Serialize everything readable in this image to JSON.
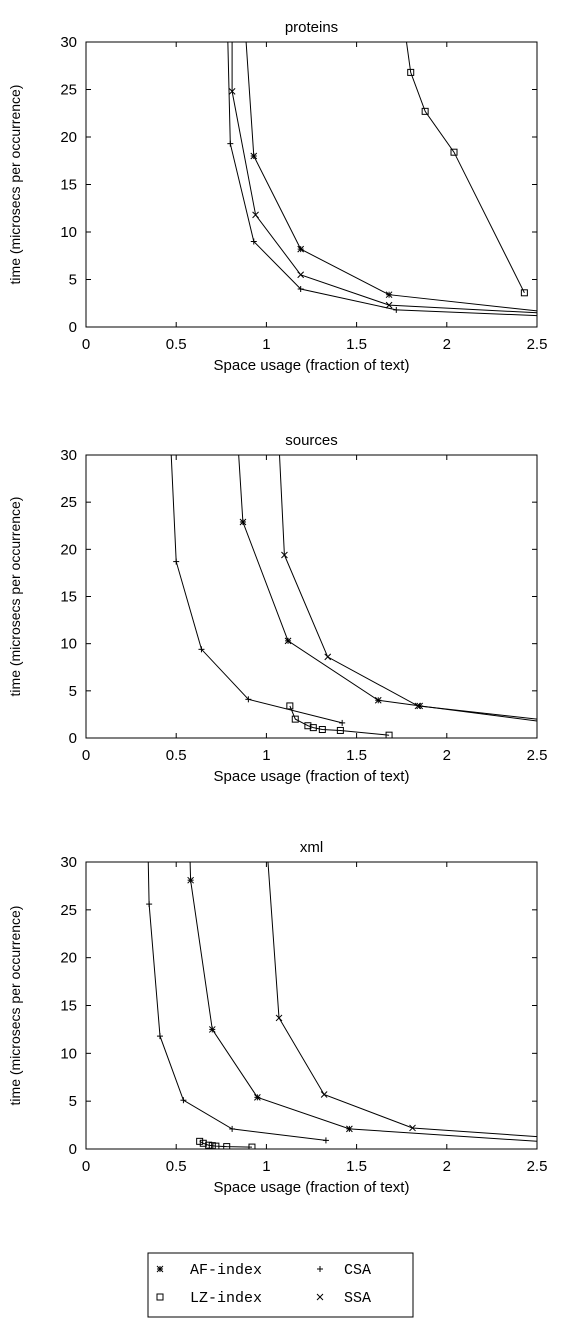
{
  "chart_data": [
    {
      "type": "line",
      "title": "proteins",
      "xlabel": "Space usage (fraction of text)",
      "ylabel": "time (microsecs per occurrence)",
      "xlim": [
        0,
        2.5
      ],
      "ylim": [
        0,
        30
      ],
      "xticks": [
        "0",
        "0.5",
        "1",
        "1.5",
        "2",
        "2.5"
      ],
      "yticks": [
        "0",
        "5",
        "10",
        "15",
        "20",
        "25",
        "30"
      ],
      "series": [
        {
          "name": "AF-index",
          "marker": "star",
          "points": [
            [
              0.87,
              35
            ],
            [
              0.93,
              18.0
            ],
            [
              1.19,
              8.2
            ],
            [
              1.68,
              3.4
            ],
            [
              2.5,
              1.7
            ]
          ]
        },
        {
          "name": "CSA",
          "marker": "plus",
          "points": [
            [
              0.78,
              35
            ],
            [
              0.8,
              19.3
            ],
            [
              0.93,
              9.0
            ],
            [
              1.19,
              4.0
            ],
            [
              1.72,
              1.8
            ],
            [
              2.5,
              1.2
            ]
          ]
        },
        {
          "name": "LZ-index",
          "marker": "square",
          "points": [
            [
              1.74,
              35
            ],
            [
              1.8,
              26.8
            ],
            [
              1.88,
              22.7
            ],
            [
              2.04,
              18.4
            ],
            [
              2.43,
              3.6
            ]
          ]
        },
        {
          "name": "SSA",
          "marker": "cross",
          "points": [
            [
              0.81,
              35
            ],
            [
              0.81,
              24.8
            ],
            [
              0.94,
              11.8
            ],
            [
              1.19,
              5.5
            ],
            [
              1.68,
              2.3
            ],
            [
              2.5,
              1.5
            ]
          ]
        }
      ]
    },
    {
      "type": "line",
      "title": "sources",
      "xlabel": "Space usage (fraction of text)",
      "ylabel": "time (microsecs per occurrence)",
      "xlim": [
        0,
        2.5
      ],
      "ylim": [
        0,
        30
      ],
      "xticks": [
        "0",
        "0.5",
        "1",
        "1.5",
        "2",
        "2.5"
      ],
      "yticks": [
        "0",
        "5",
        "10",
        "15",
        "20",
        "25",
        "30"
      ],
      "series": [
        {
          "name": "AF-index",
          "marker": "star",
          "points": [
            [
              0.83,
              35
            ],
            [
              0.87,
              22.9
            ],
            [
              1.12,
              10.3
            ],
            [
              1.62,
              4.0
            ],
            [
              1.85,
              3.4
            ],
            [
              2.5,
              1.8
            ]
          ]
        },
        {
          "name": "CSA",
          "marker": "plus",
          "points": [
            [
              0.46,
              35
            ],
            [
              0.5,
              18.7
            ],
            [
              0.64,
              9.4
            ],
            [
              0.9,
              4.1
            ],
            [
              1.42,
              1.6
            ]
          ]
        },
        {
          "name": "LZ-index",
          "marker": "square",
          "points": [
            [
              1.13,
              3.4
            ],
            [
              1.16,
              2.0
            ],
            [
              1.23,
              1.3
            ],
            [
              1.26,
              1.1
            ],
            [
              1.31,
              0.9
            ],
            [
              1.41,
              0.8
            ],
            [
              1.68,
              0.3
            ]
          ]
        },
        {
          "name": "SSA",
          "marker": "cross",
          "points": [
            [
              1.06,
              35
            ],
            [
              1.1,
              19.4
            ],
            [
              1.34,
              8.6
            ],
            [
              1.84,
              3.4
            ],
            [
              2.5,
              2.0
            ]
          ]
        }
      ]
    },
    {
      "type": "line",
      "title": "xml",
      "xlabel": "Space usage (fraction of text)",
      "ylabel": "time (microsecs per occurrence)",
      "xlim": [
        0,
        2.5
      ],
      "ylim": [
        0,
        30
      ],
      "xticks": [
        "0",
        "0.5",
        "1",
        "1.5",
        "2",
        "2.5"
      ],
      "yticks": [
        "0",
        "5",
        "10",
        "15",
        "20",
        "25",
        "30"
      ],
      "series": [
        {
          "name": "AF-index",
          "marker": "star",
          "points": [
            [
              0.57,
              35
            ],
            [
              0.58,
              28.1
            ],
            [
              0.7,
              12.5
            ],
            [
              0.95,
              5.4
            ],
            [
              1.46,
              2.1
            ],
            [
              2.5,
              0.8
            ]
          ]
        },
        {
          "name": "CSA",
          "marker": "plus",
          "points": [
            [
              0.34,
              35
            ],
            [
              0.35,
              25.6
            ],
            [
              0.41,
              11.8
            ],
            [
              0.54,
              5.1
            ],
            [
              0.81,
              2.1
            ],
            [
              1.33,
              0.9
            ]
          ]
        },
        {
          "name": "LZ-index",
          "marker": "square",
          "points": [
            [
              0.63,
              0.8
            ],
            [
              0.65,
              0.6
            ],
            [
              0.68,
              0.4
            ],
            [
              0.7,
              0.35
            ],
            [
              0.72,
              0.3
            ],
            [
              0.78,
              0.25
            ],
            [
              0.92,
              0.2
            ]
          ]
        },
        {
          "name": "SSA",
          "marker": "cross",
          "points": [
            [
              0.99,
              35
            ],
            [
              1.07,
              13.7
            ],
            [
              1.32,
              5.7
            ],
            [
              1.81,
              2.2
            ],
            [
              2.5,
              1.3
            ]
          ]
        }
      ]
    }
  ],
  "legend": {
    "placement": "bottom-center",
    "entries": [
      {
        "label": "AF-index",
        "marker": "star"
      },
      {
        "label": "CSA",
        "marker": "plus"
      },
      {
        "label": "LZ-index",
        "marker": "square"
      },
      {
        "label": "SSA",
        "marker": "cross"
      }
    ]
  },
  "colors": {
    "line": "#000000",
    "background": "#ffffff"
  }
}
